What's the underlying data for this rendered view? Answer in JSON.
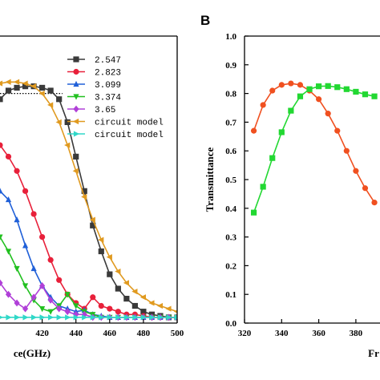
{
  "chart_data": [
    {
      "panel": "",
      "type": "line",
      "xlabel": "ce(GHz)",
      "ylabel": "",
      "xlim": [
        395,
        500
      ],
      "ylim": [
        0,
        1.0
      ],
      "x_ticks": [
        "420",
        "440",
        "460",
        "480",
        "500"
      ],
      "x_tick_values": [
        420,
        440,
        460,
        480,
        500
      ],
      "reference_line": {
        "y": 0.8,
        "x_end": 432
      },
      "series": [
        {
          "name": "2.547",
          "color": "#3a3a3a",
          "marker": "square",
          "x": [
            395,
            400,
            405,
            410,
            415,
            420,
            425,
            430,
            435,
            440,
            445,
            450,
            455,
            460,
            465,
            470,
            475,
            480,
            485,
            490,
            495,
            500
          ],
          "y": [
            0.78,
            0.81,
            0.82,
            0.825,
            0.825,
            0.82,
            0.81,
            0.78,
            0.7,
            0.58,
            0.46,
            0.34,
            0.25,
            0.17,
            0.12,
            0.085,
            0.06,
            0.04,
            0.03,
            0.025,
            0.02,
            0.02
          ]
        },
        {
          "name": "2.823",
          "color": "#e8203a",
          "marker": "circle",
          "x": [
            395,
            400,
            405,
            410,
            415,
            420,
            425,
            430,
            435,
            440,
            445,
            450,
            455,
            460,
            465,
            470,
            475,
            480,
            485,
            490,
            495,
            500
          ],
          "y": [
            0.62,
            0.58,
            0.53,
            0.46,
            0.38,
            0.3,
            0.22,
            0.15,
            0.1,
            0.07,
            0.05,
            0.09,
            0.06,
            0.05,
            0.04,
            0.03,
            0.03,
            0.025,
            0.02,
            0.02,
            0.02,
            0.02
          ]
        },
        {
          "name": "3.099",
          "color": "#2060d8",
          "marker": "triangle-up",
          "x": [
            395,
            400,
            405,
            410,
            415,
            420,
            425,
            430,
            435,
            440,
            445,
            450,
            455,
            460,
            465,
            470,
            475,
            480,
            485,
            490,
            495,
            500
          ],
          "y": [
            0.46,
            0.43,
            0.36,
            0.27,
            0.19,
            0.13,
            0.09,
            0.06,
            0.05,
            0.04,
            0.045,
            0.03,
            0.025,
            0.02,
            0.02,
            0.02,
            0.02,
            0.02,
            0.02,
            0.02,
            0.02,
            0.02
          ]
        },
        {
          "name": "3.374",
          "color": "#22c020",
          "marker": "triangle-down",
          "x": [
            395,
            400,
            405,
            410,
            415,
            420,
            425,
            430,
            435,
            440,
            445,
            450,
            455,
            460,
            465,
            470,
            475,
            480,
            485,
            490,
            495,
            500
          ],
          "y": [
            0.3,
            0.25,
            0.19,
            0.13,
            0.08,
            0.05,
            0.04,
            0.06,
            0.1,
            0.06,
            0.04,
            0.03,
            0.02,
            0.02,
            0.02,
            0.02,
            0.02,
            0.02,
            0.02,
            0.02,
            0.02,
            0.02
          ]
        },
        {
          "name": "3.65",
          "color": "#b040d8",
          "marker": "diamond",
          "x": [
            395,
            400,
            405,
            410,
            415,
            420,
            425,
            430,
            435,
            440,
            445,
            450,
            455,
            460,
            465,
            470,
            475,
            480,
            485,
            490,
            495,
            500
          ],
          "y": [
            0.14,
            0.1,
            0.07,
            0.05,
            0.09,
            0.13,
            0.08,
            0.05,
            0.04,
            0.03,
            0.03,
            0.02,
            0.02,
            0.02,
            0.02,
            0.02,
            0.02,
            0.02,
            0.02,
            0.02,
            0.02,
            0.02
          ]
        },
        {
          "name": "circuit model",
          "color": "#e09a20",
          "marker": "triangle-left",
          "x": [
            395,
            400,
            405,
            410,
            415,
            420,
            425,
            430,
            435,
            440,
            445,
            450,
            455,
            460,
            465,
            470,
            475,
            480,
            485,
            490,
            495,
            500
          ],
          "y": [
            0.835,
            0.84,
            0.84,
            0.835,
            0.825,
            0.8,
            0.76,
            0.7,
            0.62,
            0.53,
            0.44,
            0.36,
            0.29,
            0.23,
            0.18,
            0.14,
            0.11,
            0.09,
            0.07,
            0.06,
            0.05,
            0.04
          ]
        },
        {
          "name": "circuit model",
          "color": "#30d8c8",
          "marker": "triangle-right",
          "x": [
            395,
            400,
            405,
            410,
            415,
            420,
            425,
            430,
            435,
            440,
            445,
            450,
            455,
            460,
            465,
            470,
            475,
            480,
            485,
            490,
            495,
            500
          ],
          "y": [
            0.02,
            0.02,
            0.02,
            0.02,
            0.02,
            0.02,
            0.02,
            0.02,
            0.02,
            0.02,
            0.02,
            0.02,
            0.02,
            0.02,
            0.02,
            0.02,
            0.02,
            0.02,
            0.02,
            0.02,
            0.02,
            0.02
          ]
        }
      ]
    },
    {
      "panel": "B",
      "type": "line",
      "xlabel": "Fr",
      "ylabel": "Transmittance",
      "xlim": [
        320,
        393
      ],
      "ylim": [
        0.0,
        1.0
      ],
      "x_ticks": [
        "320",
        "340",
        "360",
        "380"
      ],
      "x_tick_values": [
        320,
        340,
        360,
        380
      ],
      "y_ticks": [
        "0.0",
        "0.1",
        "0.2",
        "0.3",
        "0.4",
        "0.5",
        "0.6",
        "0.7",
        "0.8",
        "0.9",
        "1.0"
      ],
      "y_tick_values": [
        0.0,
        0.1,
        0.2,
        0.3,
        0.4,
        0.5,
        0.6,
        0.7,
        0.8,
        0.9,
        1.0
      ],
      "series": [
        {
          "color": "#f05020",
          "marker": "circle",
          "x": [
            325,
            330,
            335,
            340,
            345,
            350,
            355,
            360,
            365,
            370,
            375,
            380,
            385,
            390
          ],
          "y": [
            0.67,
            0.76,
            0.81,
            0.83,
            0.835,
            0.83,
            0.81,
            0.78,
            0.73,
            0.67,
            0.6,
            0.53,
            0.47,
            0.42
          ]
        },
        {
          "color": "#22d832",
          "marker": "square",
          "x": [
            325,
            330,
            335,
            340,
            345,
            350,
            355,
            360,
            365,
            370,
            375,
            380,
            385,
            390
          ],
          "y": [
            0.385,
            0.475,
            0.575,
            0.665,
            0.74,
            0.79,
            0.815,
            0.825,
            0.826,
            0.822,
            0.815,
            0.806,
            0.797,
            0.79
          ]
        }
      ]
    }
  ]
}
